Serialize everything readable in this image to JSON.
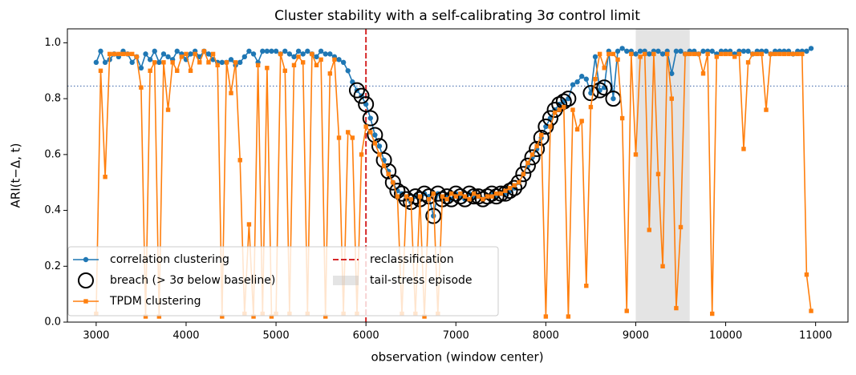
{
  "chart_data": {
    "type": "line",
    "title": "Cluster stability with a self-calibrating 3σ control limit",
    "xlabel": "observation (window center)",
    "ylabel": "ARI(t−Δ, t)",
    "x": [
      3000,
      3050,
      3100,
      3150,
      3200,
      3250,
      3300,
      3350,
      3400,
      3450,
      3500,
      3550,
      3600,
      3650,
      3700,
      3750,
      3800,
      3850,
      3900,
      3950,
      4000,
      4050,
      4100,
      4150,
      4200,
      4250,
      4300,
      4350,
      4400,
      4450,
      4500,
      4550,
      4600,
      4650,
      4700,
      4750,
      4800,
      4850,
      4900,
      4950,
      5000,
      5050,
      5100,
      5150,
      5200,
      5250,
      5300,
      5350,
      5400,
      5450,
      5500,
      5550,
      5600,
      5650,
      5700,
      5750,
      5800,
      5850,
      5900,
      5950,
      6000,
      6050,
      6100,
      6150,
      6200,
      6250,
      6300,
      6350,
      6400,
      6450,
      6500,
      6550,
      6600,
      6650,
      6700,
      6750,
      6800,
      6850,
      6900,
      6950,
      7000,
      7050,
      7100,
      7150,
      7200,
      7250,
      7300,
      7350,
      7400,
      7450,
      7500,
      7550,
      7600,
      7650,
      7700,
      7750,
      7800,
      7850,
      7900,
      7950,
      8000,
      8050,
      8100,
      8150,
      8200,
      8250,
      8300,
      8350,
      8400,
      8450,
      8500,
      8550,
      8600,
      8650,
      8700,
      8750,
      8800,
      8850,
      8900,
      8950,
      9000,
      9050,
      9100,
      9150,
      9200,
      9250,
      9300,
      9350,
      9400,
      9450,
      9500,
      9550,
      9600,
      9650,
      9700,
      9750,
      9800,
      9850,
      9900,
      9950,
      10000,
      10050,
      10100,
      10150,
      10200,
      10250,
      10300,
      10350,
      10400,
      10450,
      10500,
      10550,
      10600,
      10650,
      10700,
      10750,
      10800,
      10850,
      10900,
      10950
    ],
    "series": [
      {
        "name": "correlation clustering",
        "color": "#1f77b4",
        "marker": "circle",
        "line": true,
        "values": [
          0.93,
          0.97,
          0.93,
          0.94,
          0.96,
          0.95,
          0.97,
          0.96,
          0.93,
          0.95,
          0.91,
          0.96,
          0.94,
          0.97,
          0.93,
          0.96,
          0.95,
          0.94,
          0.97,
          0.96,
          0.94,
          0.96,
          0.97,
          0.95,
          0.97,
          0.96,
          0.94,
          0.93,
          0.93,
          0.93,
          0.94,
          0.92,
          0.93,
          0.95,
          0.97,
          0.96,
          0.93,
          0.97,
          0.97,
          0.97,
          0.97,
          0.96,
          0.97,
          0.96,
          0.95,
          0.97,
          0.96,
          0.97,
          0.96,
          0.95,
          0.97,
          0.96,
          0.96,
          0.95,
          0.94,
          0.93,
          0.9,
          0.86,
          0.83,
          0.81,
          0.78,
          0.73,
          0.67,
          0.63,
          0.58,
          0.54,
          0.5,
          0.47,
          0.46,
          0.44,
          0.43,
          0.45,
          0.44,
          0.46,
          0.45,
          0.38,
          0.46,
          0.44,
          0.45,
          0.44,
          0.46,
          0.45,
          0.44,
          0.46,
          0.45,
          0.45,
          0.44,
          0.45,
          0.46,
          0.45,
          0.46,
          0.46,
          0.47,
          0.48,
          0.5,
          0.53,
          0.56,
          0.59,
          0.62,
          0.66,
          0.7,
          0.73,
          0.76,
          0.78,
          0.79,
          0.8,
          0.85,
          0.86,
          0.88,
          0.87,
          0.82,
          0.95,
          0.83,
          0.84,
          0.97,
          0.8,
          0.97,
          0.98,
          0.97,
          0.97,
          0.96,
          0.97,
          0.97,
          0.96,
          0.97,
          0.97,
          0.96,
          0.97,
          0.89,
          0.97,
          0.97,
          0.96,
          0.97,
          0.97,
          0.96,
          0.97,
          0.97,
          0.97,
          0.96,
          0.97,
          0.97,
          0.97,
          0.96,
          0.97,
          0.97,
          0.97,
          0.96,
          0.97,
          0.97,
          0.97,
          0.96,
          0.97,
          0.97,
          0.97,
          0.97,
          0.96,
          0.97,
          0.97,
          0.97,
          0.98
        ]
      },
      {
        "name": "breach (> 3σ below baseline)",
        "color": "#000000",
        "marker": "circle-open",
        "line": false,
        "values": [
          null,
          null,
          null,
          null,
          null,
          null,
          null,
          null,
          null,
          null,
          null,
          null,
          null,
          null,
          null,
          null,
          null,
          null,
          null,
          null,
          null,
          null,
          null,
          null,
          null,
          null,
          null,
          null,
          null,
          null,
          null,
          null,
          null,
          null,
          null,
          null,
          null,
          null,
          null,
          null,
          null,
          null,
          null,
          null,
          null,
          null,
          null,
          null,
          null,
          null,
          null,
          null,
          null,
          null,
          null,
          null,
          null,
          null,
          0.83,
          0.81,
          0.78,
          0.73,
          0.67,
          0.63,
          0.58,
          0.54,
          0.5,
          0.47,
          0.46,
          0.44,
          0.43,
          0.45,
          0.44,
          0.46,
          0.45,
          0.38,
          0.46,
          0.44,
          0.45,
          0.44,
          0.46,
          0.45,
          0.44,
          0.46,
          0.45,
          0.45,
          0.44,
          0.45,
          0.46,
          0.45,
          0.46,
          0.46,
          0.47,
          0.48,
          0.5,
          0.53,
          0.56,
          0.59,
          0.62,
          0.66,
          0.7,
          0.73,
          0.76,
          0.78,
          0.79,
          0.8,
          null,
          null,
          null,
          null,
          0.82,
          null,
          0.83,
          0.84,
          null,
          0.8,
          null,
          null,
          null,
          null,
          null,
          null,
          null,
          null,
          null,
          null,
          null,
          null,
          null,
          null,
          null,
          null,
          null,
          null,
          null,
          null,
          null,
          null,
          null,
          null,
          null,
          null,
          null,
          null,
          null,
          null,
          null,
          null,
          null,
          null,
          null,
          null,
          null,
          null,
          null,
          null,
          null,
          null,
          null,
          null
        ]
      },
      {
        "name": "TPDM clustering",
        "color": "#ff7f0e",
        "marker": "square",
        "line": true,
        "values": [
          0.03,
          0.9,
          0.52,
          0.96,
          0.96,
          0.96,
          0.96,
          0.96,
          0.96,
          0.95,
          0.84,
          0.02,
          0.9,
          0.93,
          0.02,
          0.93,
          0.76,
          0.93,
          0.9,
          0.95,
          0.96,
          0.9,
          0.96,
          0.93,
          0.97,
          0.93,
          0.96,
          0.92,
          0.02,
          0.93,
          0.82,
          0.93,
          0.58,
          0.03,
          0.35,
          0.02,
          0.92,
          0.03,
          0.91,
          0.02,
          0.03,
          0.96,
          0.9,
          0.03,
          0.92,
          0.95,
          0.93,
          0.03,
          0.96,
          0.92,
          0.94,
          0.02,
          0.89,
          0.94,
          0.66,
          0.03,
          0.68,
          0.66,
          0.03,
          0.6,
          0.7,
          0.68,
          0.64,
          0.6,
          0.56,
          0.53,
          0.5,
          0.45,
          0.03,
          0.45,
          0.44,
          0.03,
          0.45,
          0.02,
          0.44,
          0.46,
          0.03,
          0.45,
          0.44,
          0.46,
          0.45,
          0.46,
          0.45,
          0.44,
          0.46,
          0.45,
          0.44,
          0.45,
          0.45,
          0.46,
          0.46,
          0.47,
          0.48,
          0.49,
          0.5,
          0.53,
          0.57,
          0.6,
          0.63,
          0.67,
          0.02,
          0.7,
          0.75,
          0.76,
          0.77,
          0.02,
          0.76,
          0.69,
          0.72,
          0.13,
          0.77,
          0.87,
          0.96,
          0.91,
          0.96,
          0.96,
          0.94,
          0.73,
          0.04,
          0.96,
          0.6,
          0.95,
          0.96,
          0.33,
          0.96,
          0.53,
          0.2,
          0.96,
          0.8,
          0.05,
          0.34,
          0.96,
          0.96,
          0.96,
          0.96,
          0.89,
          0.96,
          0.03,
          0.95,
          0.96,
          0.96,
          0.96,
          0.95,
          0.96,
          0.62,
          0.93,
          0.96,
          0.96,
          0.96,
          0.76,
          0.96,
          0.96,
          0.96,
          0.96,
          0.96,
          0.96,
          0.96,
          0.96,
          0.17,
          0.04
        ]
      }
    ],
    "vlines": [
      {
        "x": 6000,
        "label": "reclassification",
        "color": "#d62728"
      }
    ],
    "spans": [
      {
        "x0": 9000,
        "x1": 9600,
        "label": "tail-stress episode",
        "color": "#bbbbbb"
      }
    ],
    "hlines": [
      {
        "y": 0.845,
        "color": "#4c72b0"
      }
    ],
    "xlim": [
      2680,
      11360
    ],
    "ylim": [
      0,
      1.05
    ],
    "xticks": [
      3000,
      4000,
      5000,
      6000,
      7000,
      8000,
      9000,
      10000,
      11000
    ],
    "yticks": [
      {
        "value": 0,
        "label": "0.0"
      },
      0.2,
      0.4,
      0.6,
      0.8,
      {
        "value": 1,
        "label": "1.0"
      }
    ],
    "legend": "lower left"
  }
}
